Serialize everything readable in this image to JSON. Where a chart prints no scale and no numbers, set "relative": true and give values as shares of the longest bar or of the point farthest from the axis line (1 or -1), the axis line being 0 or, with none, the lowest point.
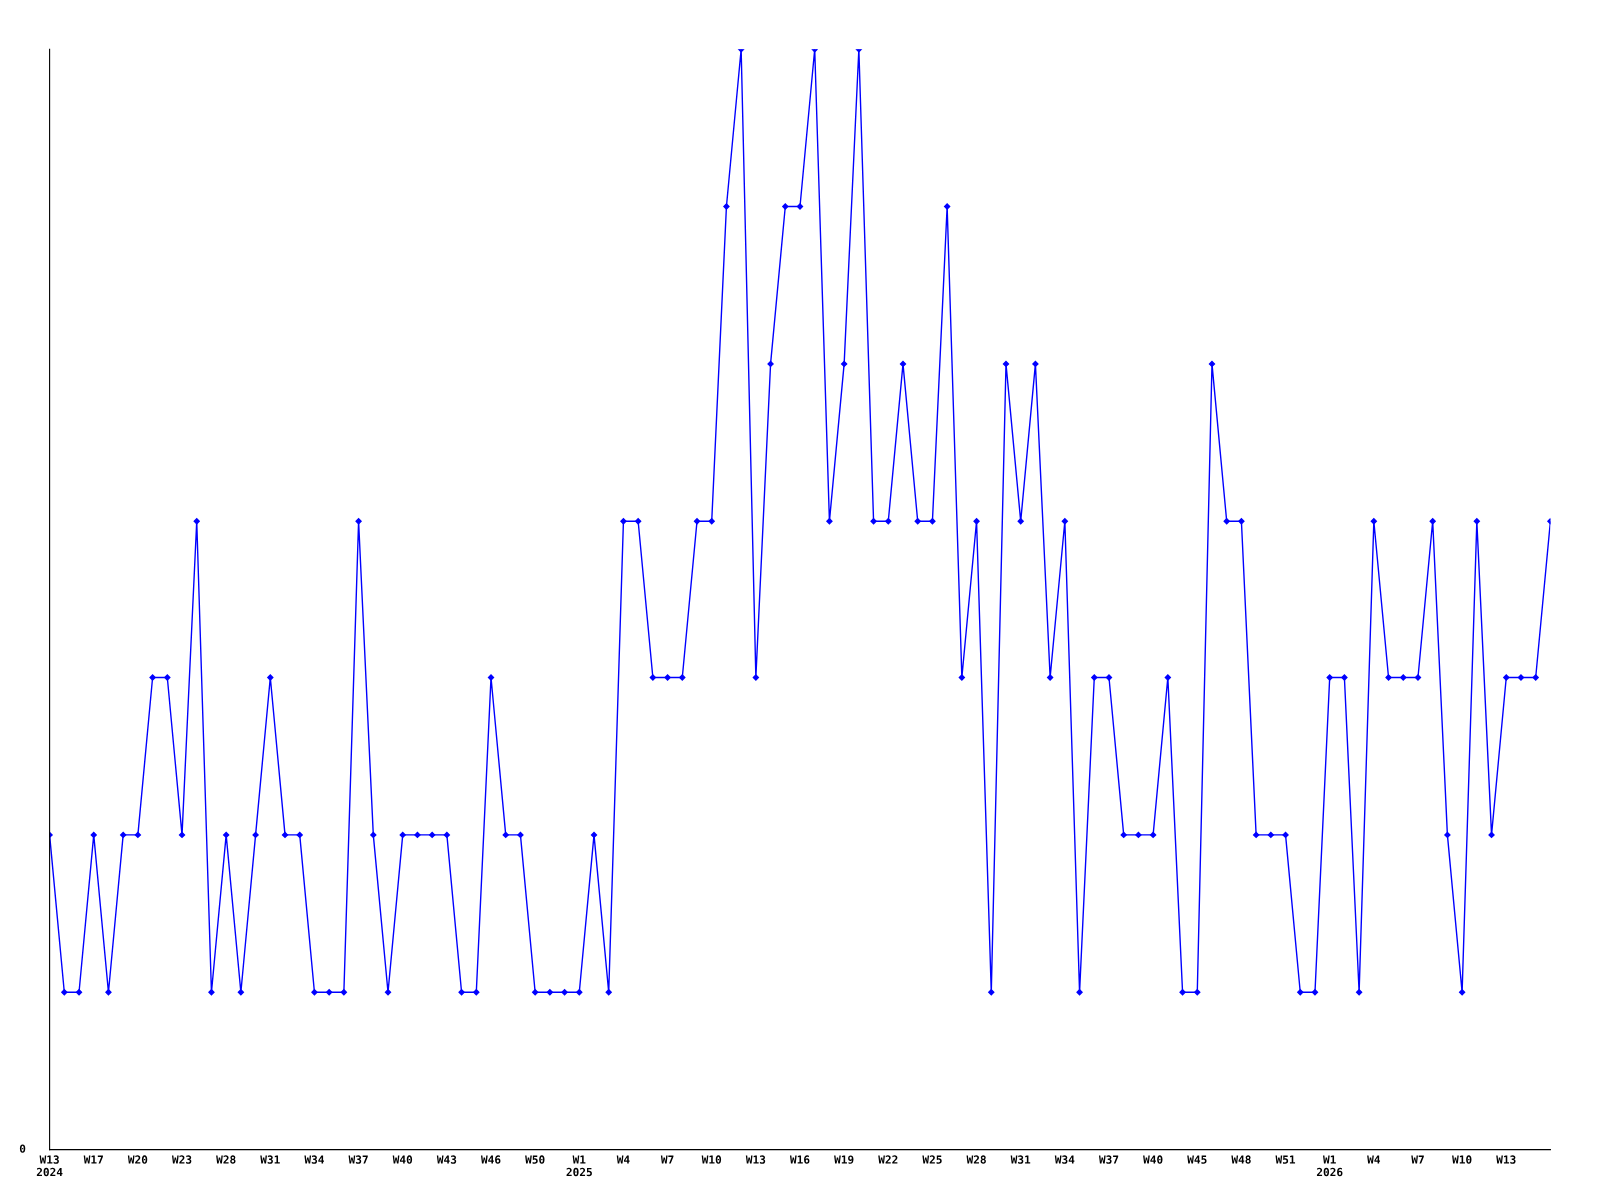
{
  "chart_data": {
    "type": "line",
    "relative": true,
    "categories": [
      "W13\n2024",
      null,
      null,
      "W17",
      null,
      null,
      "W20",
      null,
      null,
      "W23",
      null,
      null,
      "W28",
      null,
      null,
      "W31",
      null,
      null,
      "W34",
      null,
      null,
      "W37",
      null,
      null,
      "W40",
      null,
      null,
      "W43",
      null,
      null,
      "W46",
      null,
      null,
      "W50",
      null,
      null,
      "W1\n2025",
      null,
      null,
      "W4",
      null,
      null,
      "W7",
      null,
      null,
      "W10",
      null,
      null,
      "W13",
      null,
      null,
      "W16",
      null,
      null,
      "W19",
      null,
      null,
      "W22",
      null,
      null,
      "W25",
      null,
      null,
      "W28",
      null,
      null,
      "W31",
      null,
      null,
      "W34",
      null,
      null,
      "W37",
      null,
      null,
      "W40",
      null,
      null,
      "W45",
      null,
      null,
      "W48",
      null,
      null,
      "W51",
      null,
      null,
      "W1\n2026",
      null,
      null,
      "W4",
      null,
      null,
      "W7",
      null,
      null,
      "W10",
      null,
      null,
      "W13",
      null,
      null,
      null
    ],
    "series": [
      {
        "color": "#0000ff",
        "values": [
          0.286,
          0.143,
          0.143,
          0.286,
          0.143,
          0.286,
          0.286,
          0.429,
          0.429,
          0.286,
          0.571,
          0.143,
          0.286,
          0.143,
          0.286,
          0.429,
          0.286,
          0.286,
          0.143,
          0.143,
          0.143,
          0.571,
          0.286,
          0.143,
          0.286,
          0.286,
          0.286,
          0.286,
          0.143,
          0.143,
          0.429,
          0.286,
          0.286,
          0.143,
          0.143,
          0.143,
          0.143,
          0.286,
          0.143,
          0.571,
          0.571,
          0.429,
          0.429,
          0.429,
          0.571,
          0.571,
          0.857,
          1,
          0.429,
          0.714,
          0.857,
          0.857,
          1,
          0.571,
          0.714,
          1,
          0.571,
          0.571,
          0.714,
          0.571,
          0.571,
          0.857,
          0.429,
          0.571,
          0.143,
          0.714,
          0.571,
          0.714,
          0.429,
          0.571,
          0.143,
          0.429,
          0.429,
          0.286,
          0.286,
          0.286,
          0.429,
          0.143,
          0.143,
          0.714,
          0.571,
          0.571,
          0.286,
          0.286,
          0.286,
          0.143,
          0.143,
          0.429,
          0.429,
          0.143,
          0.571,
          0.429,
          0.429,
          0.429,
          0.571,
          0.286,
          0.143,
          0.571,
          0.286,
          0.429,
          0.429,
          0.429,
          0.571
        ]
      }
    ],
    "annotations": [
      "0"
    ],
    "marker": "diamond",
    "line_style": "solid",
    "grid": false,
    "legend": false
  }
}
